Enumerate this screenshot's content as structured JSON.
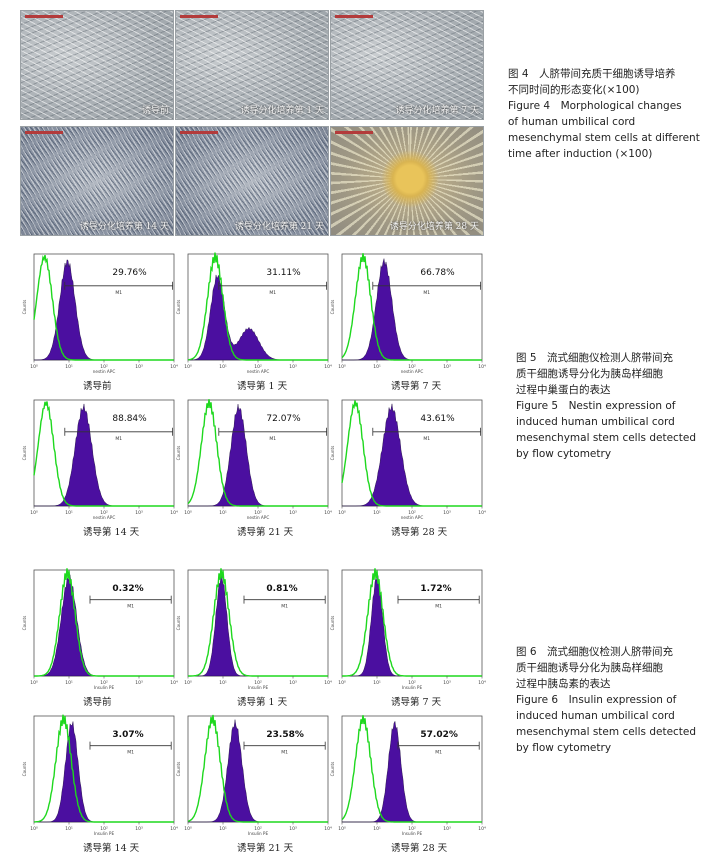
{
  "figure4": {
    "images": [
      {
        "label": "诱导前",
        "style": "sparse"
      },
      {
        "label": "诱导分化培养第 1 天",
        "style": "sparse"
      },
      {
        "label": "诱导分化培养第 7 天",
        "style": "sparse"
      },
      {
        "label": "诱导分化培养第 14 天",
        "style": "dense"
      },
      {
        "label": "诱导分化培养第 21 天",
        "style": "dense"
      },
      {
        "label": "诱导分化培养第 28 天",
        "style": "islet"
      }
    ],
    "caption": [
      "图 4　人脐带间充质干细胞诱导培养",
      "不同时间的形态变化(×100)",
      "Figure 4　Morphological changes",
      "of human umbilical cord",
      "mesenchymal stem cells at different",
      "time after induction (×100)"
    ]
  },
  "figure5": {
    "xlabel": "nestin APC",
    "ylabel": "Counts",
    "gate_label": "M1",
    "caption": [
      "图 5　流式细胞仪检测人脐带间充",
      "质干细胞诱导分化为胰岛样细胞",
      "过程中巢蛋白的表达",
      "Figure 5　Nestin expression of",
      "induced human umbilical cord",
      "mesenchymal stem cells detected",
      "by flow cytometry"
    ]
  },
  "figure6": {
    "xlabel": "Insulin PE",
    "ylabel": "Counts",
    "gate_label": "M1",
    "caption": [
      "图 6　流式细胞仪检测人脐带间充",
      "质干细胞诱导分化为胰岛样细胞",
      "过程中胰岛素的表达",
      "Figure 6　Insulin expression of",
      "induced human umbilical cord",
      "mesenchymal stem cells detected",
      "by flow cytometry"
    ]
  },
  "chart_data": [
    {
      "type": "area",
      "figure": "Figure 5",
      "xlabel": "nestin APC",
      "ylabel": "Counts",
      "xscale": "log",
      "xlim": [
        1,
        10000
      ],
      "gate": "M1",
      "series_colors": {
        "control": "#1ed81e",
        "sample": "#4b0fa0"
      },
      "panels": [
        {
          "sample": "诱导前",
          "percent": "29.76%",
          "control_peak": 2.0,
          "sample_peak": 9,
          "sample_width": 0.22,
          "secondary_peak": null
        },
        {
          "sample": "诱导第 1 天",
          "percent": "31.11%",
          "control_peak": 6,
          "sample_peak": 7,
          "sample_width": 0.25,
          "secondary_peak": 55
        },
        {
          "sample": "诱导第 7 天",
          "percent": "66.78%",
          "control_peak": 4,
          "sample_peak": 16,
          "sample_width": 0.22,
          "secondary_peak": null
        },
        {
          "sample": "诱导第 14 天",
          "percent": "88.84%",
          "control_peak": 2.2,
          "sample_peak": 26,
          "sample_width": 0.24,
          "secondary_peak": null
        },
        {
          "sample": "诱导第 21 天",
          "percent": "72.07%",
          "control_peak": 4,
          "sample_peak": 28,
          "sample_width": 0.22,
          "secondary_peak": null
        },
        {
          "sample": "诱导第 28 天",
          "percent": "43.61%",
          "control_peak": 2.4,
          "sample_peak": 26,
          "sample_width": 0.26,
          "secondary_peak": null
        }
      ]
    },
    {
      "type": "area",
      "figure": "Figure 6",
      "xlabel": "Insulin PE",
      "ylabel": "Counts",
      "xscale": "log",
      "xlim": [
        1,
        10000
      ],
      "gate": "M1",
      "series_colors": {
        "control": "#1ed81e",
        "sample": "#4b0fa0"
      },
      "panels": [
        {
          "sample": "诱导前",
          "percent": "0.32%",
          "control_peak": 9,
          "sample_peak": 10,
          "sample_width": 0.22,
          "secondary_peak": null
        },
        {
          "sample": "诱导第 1 天",
          "percent": "0.81%",
          "control_peak": 9,
          "sample_peak": 9,
          "sample_width": 0.16,
          "secondary_peak": null
        },
        {
          "sample": "诱导第 7 天",
          "percent": "1.72%",
          "control_peak": 9,
          "sample_peak": 10,
          "sample_width": 0.16,
          "secondary_peak": null
        },
        {
          "sample": "诱导第 14 天",
          "percent": "3.07%",
          "control_peak": 7,
          "sample_peak": 12,
          "sample_width": 0.18,
          "secondary_peak": null
        },
        {
          "sample": "诱导第 21 天",
          "percent": "23.58%",
          "control_peak": 5,
          "sample_peak": 22,
          "sample_width": 0.2,
          "secondary_peak": null
        },
        {
          "sample": "诱导第 28 天",
          "percent": "57.02%",
          "control_peak": 4,
          "sample_peak": 32,
          "sample_width": 0.18,
          "secondary_peak": null
        }
      ]
    }
  ]
}
